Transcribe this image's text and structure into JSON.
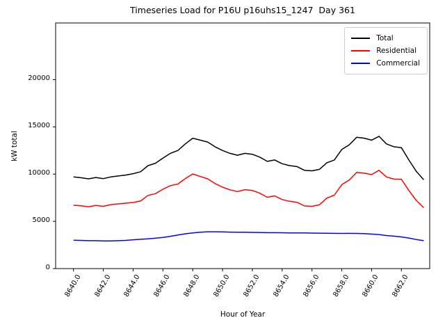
{
  "chart_data": {
    "type": "line",
    "title": "Timeseries Load for P16U p16uhs15_1247  Day 361",
    "xlabel": "Hour of Year",
    "ylabel": "kW total",
    "xlim": [
      8638.8,
      8663.9
    ],
    "ylim": [
      0,
      26000
    ],
    "grid": false,
    "legend_position": "upper right",
    "x_tick_values": [
      8640,
      8642,
      8644,
      8646,
      8648,
      8650,
      8652,
      8654,
      8656,
      8658,
      8660,
      8662
    ],
    "x_tick_labels": [
      "8640.0",
      "8642.0",
      "8644.0",
      "8646.0",
      "8648.0",
      "8650.0",
      "8652.0",
      "8654.0",
      "8656.0",
      "8658.0",
      "8660.0",
      "8662.0"
    ],
    "y_tick_values": [
      0,
      5000,
      10000,
      15000,
      20000
    ],
    "y_tick_labels": [
      "0",
      "5000",
      "10000",
      "15000",
      "20000"
    ],
    "x": [
      8640.0,
      8640.5,
      8641.0,
      8641.5,
      8642.0,
      8642.5,
      8643.0,
      8643.5,
      8644.0,
      8644.5,
      8645.0,
      8645.5,
      8646.0,
      8646.5,
      8647.0,
      8647.5,
      8648.0,
      8648.5,
      8649.0,
      8649.5,
      8650.0,
      8650.5,
      8651.0,
      8651.5,
      8652.0,
      8652.5,
      8653.0,
      8653.5,
      8654.0,
      8654.5,
      8655.0,
      8655.5,
      8656.0,
      8656.5,
      8657.0,
      8657.5,
      8658.0,
      8658.5,
      8659.0,
      8659.5,
      8660.0,
      8660.5,
      8661.0,
      8661.5,
      8662.0,
      8662.5,
      8663.0,
      8663.5
    ],
    "series": [
      {
        "name": "Total",
        "color": "#000000",
        "values": [
          9700,
          9620,
          9500,
          9640,
          9520,
          9700,
          9800,
          9900,
          10050,
          10250,
          10900,
          11150,
          11700,
          12200,
          12500,
          13200,
          13800,
          13600,
          13400,
          12900,
          12500,
          12200,
          12000,
          12200,
          12100,
          11800,
          11350,
          11500,
          11100,
          10900,
          10800,
          10400,
          10350,
          10500,
          11200,
          11500,
          12600,
          13100,
          13900,
          13800,
          13600,
          14000,
          13200,
          12900,
          12800,
          11500,
          10300,
          9400
        ]
      },
      {
        "name": "Residential",
        "color": "#ff0000",
        "values": [
          6700,
          6640,
          6550,
          6690,
          6590,
          6770,
          6850,
          6920,
          7000,
          7150,
          7750,
          7930,
          8400,
          8780,
          8950,
          9520,
          10020,
          9750,
          9500,
          9000,
          8620,
          8340,
          8150,
          8350,
          8270,
          7980,
          7550,
          7700,
          7310,
          7120,
          7020,
          6630,
          6590,
          6750,
          7460,
          7770,
          8880,
          9370,
          10180,
          10100,
          9950,
          10400,
          9700,
          9470,
          9450,
          8270,
          7220,
          6450
        ]
      },
      {
        "name": "Commercial",
        "color": "#0000ff",
        "values": [
          3000,
          2980,
          2950,
          2950,
          2930,
          2930,
          2950,
          2980,
          3050,
          3100,
          3150,
          3220,
          3300,
          3420,
          3550,
          3680,
          3780,
          3850,
          3900,
          3900,
          3880,
          3860,
          3850,
          3850,
          3830,
          3820,
          3800,
          3800,
          3790,
          3780,
          3780,
          3770,
          3760,
          3750,
          3740,
          3730,
          3720,
          3730,
          3720,
          3700,
          3650,
          3600,
          3500,
          3430,
          3350,
          3230,
          3080,
          2950
        ]
      }
    ]
  }
}
